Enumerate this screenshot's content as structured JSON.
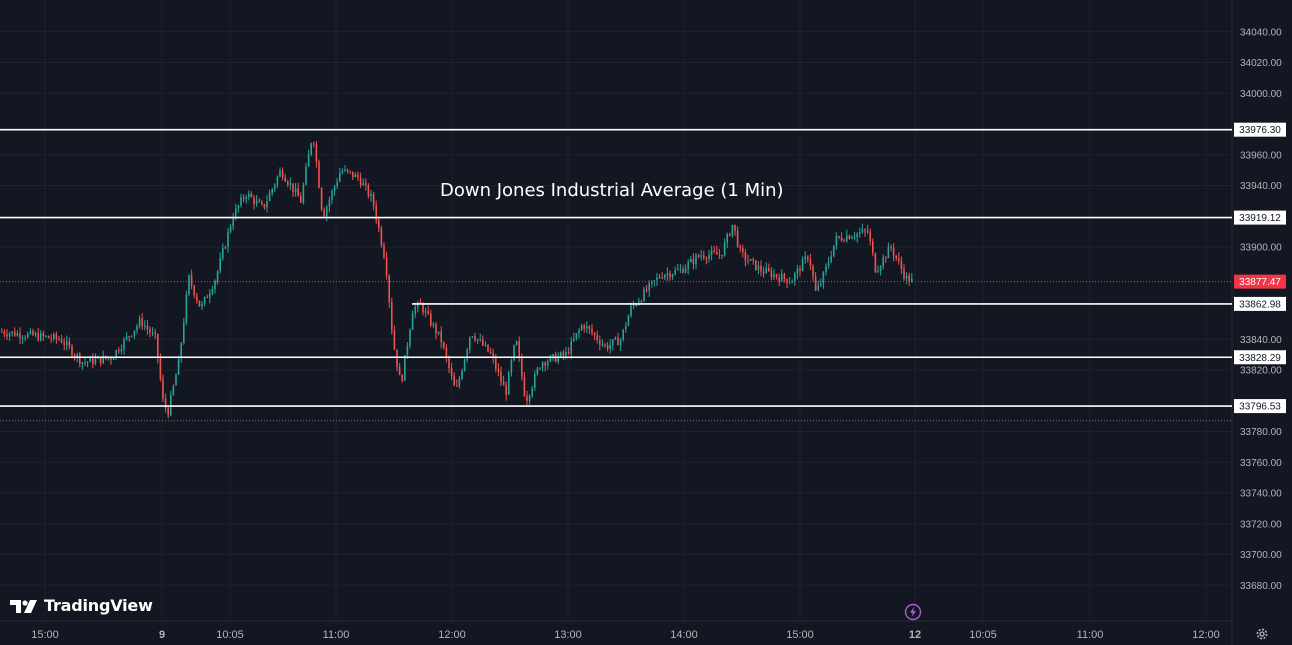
{
  "chart_data": {
    "type": "candlestick",
    "title": "Down Jones Industrial Average (1 Min)",
    "y_range": [
      33680,
      34060
    ],
    "y_ticks": [
      {
        "value": 34040,
        "label": "34040.00"
      },
      {
        "value": 34020,
        "label": "34020.00"
      },
      {
        "value": 34000,
        "label": "34000.00"
      },
      {
        "value": 33960,
        "label": "33960.00"
      },
      {
        "value": 33940,
        "label": "33940.00"
      },
      {
        "value": 33900,
        "label": "33900.00"
      },
      {
        "value": 33840,
        "label": "33840.00"
      },
      {
        "value": 33820,
        "label": "33820.00"
      },
      {
        "value": 33780,
        "label": "33780.00"
      },
      {
        "value": 33760,
        "label": "33760.00"
      },
      {
        "value": 33740,
        "label": "33740.00"
      },
      {
        "value": 33720,
        "label": "33720.00"
      },
      {
        "value": 33700,
        "label": "33700.00"
      },
      {
        "value": 33680,
        "label": "33680.00"
      }
    ],
    "x_ticks": [
      "15:00",
      "9",
      "10:05",
      "11:00",
      "12:00",
      "13:00",
      "14:00",
      "15:00",
      "12",
      "10:05",
      "11:00",
      "12:00"
    ],
    "levels": [
      {
        "value": 33976.3,
        "label": "33976.30"
      },
      {
        "value": 33919.12,
        "label": "33919.12"
      },
      {
        "value": 33862.98,
        "label": "33862.98"
      },
      {
        "value": 33828.29,
        "label": "33828.29"
      },
      {
        "value": 33796.53,
        "label": "33796.53"
      }
    ],
    "last_price": {
      "value": 33877.47,
      "label": "33877.47"
    },
    "dotted_low": 33787,
    "price_path": [
      [
        0,
        33845
      ],
      [
        60,
        33840
      ],
      [
        82,
        33825
      ],
      [
        110,
        33828
      ],
      [
        140,
        33852
      ],
      [
        155,
        33840
      ],
      [
        162,
        33800
      ],
      [
        167,
        33792
      ],
      [
        178,
        33825
      ],
      [
        188,
        33880
      ],
      [
        200,
        33860
      ],
      [
        215,
        33880
      ],
      [
        232,
        33920
      ],
      [
        245,
        33935
      ],
      [
        262,
        33925
      ],
      [
        280,
        33950
      ],
      [
        300,
        33930
      ],
      [
        312,
        33975
      ],
      [
        322,
        33920
      ],
      [
        340,
        33950
      ],
      [
        358,
        33945
      ],
      [
        372,
        33930
      ],
      [
        385,
        33890
      ],
      [
        392,
        33840
      ],
      [
        400,
        33810
      ],
      [
        412,
        33860
      ],
      [
        420,
        33862
      ],
      [
        440,
        33840
      ],
      [
        455,
        33805
      ],
      [
        470,
        33845
      ],
      [
        490,
        33830
      ],
      [
        505,
        33805
      ],
      [
        515,
        33840
      ],
      [
        525,
        33800
      ],
      [
        540,
        33825
      ],
      [
        565,
        33830
      ],
      [
        582,
        33850
      ],
      [
        605,
        33835
      ],
      [
        620,
        33840
      ],
      [
        630,
        33860
      ],
      [
        660,
        33882
      ],
      [
        680,
        33885
      ],
      [
        700,
        33895
      ],
      [
        720,
        33895
      ],
      [
        732,
        33915
      ],
      [
        740,
        33895
      ],
      [
        760,
        33885
      ],
      [
        790,
        33878
      ],
      [
        808,
        33895
      ],
      [
        815,
        33870
      ],
      [
        822,
        33880
      ],
      [
        835,
        33905
      ],
      [
        850,
        33908
      ],
      [
        867,
        33910
      ],
      [
        875,
        33885
      ],
      [
        890,
        33900
      ],
      [
        905,
        33880
      ],
      [
        913,
        33877
      ]
    ]
  },
  "labels": {
    "brand": "TradingView"
  },
  "colors": {
    "background": "#131722",
    "up": "#26a69a",
    "down": "#ef5350",
    "level_line": "#ffffff",
    "last_price_bg": "#f23645",
    "axis_text": "#b2b5be",
    "lightning": "#b159d8"
  },
  "icons": [
    "tradingview-logo-icon",
    "lightning-icon",
    "settings-gear-icon"
  ]
}
